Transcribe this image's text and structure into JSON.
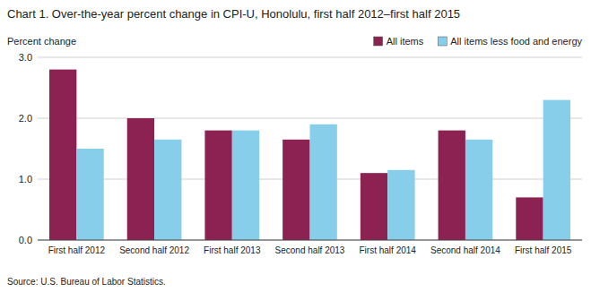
{
  "chart_data": {
    "type": "bar",
    "title": "Chart 1. Over-the-year percent change in CPI-U, Honolulu, first  half 2012–first  half 2015",
    "y_label": "Percent change",
    "source": "Source: U.S. Bureau of Labor Statistics.",
    "categories": [
      "First half 2012",
      "Second half 2012",
      "First half 2013",
      "Second half 2013",
      "First half 2014",
      "Second half 2014",
      "First half 2015"
    ],
    "series": [
      {
        "name": "All items",
        "color": "#8B2252",
        "values": [
          2.8,
          2.0,
          1.8,
          1.65,
          1.1,
          1.8,
          0.7
        ]
      },
      {
        "name": "All items less food and energy",
        "color": "#87CEEB",
        "values": [
          1.5,
          1.65,
          1.8,
          1.9,
          1.15,
          1.65,
          2.3
        ]
      }
    ],
    "ylim": [
      0.0,
      3.0
    ],
    "yticks": [
      {
        "value": 0.0,
        "label": "0.0"
      },
      {
        "value": 1.0,
        "label": "1.0"
      },
      {
        "value": 2.0,
        "label": "2.0"
      },
      {
        "value": 3.0,
        "label": "3.0"
      }
    ],
    "grid": true,
    "legend": "upper right"
  }
}
